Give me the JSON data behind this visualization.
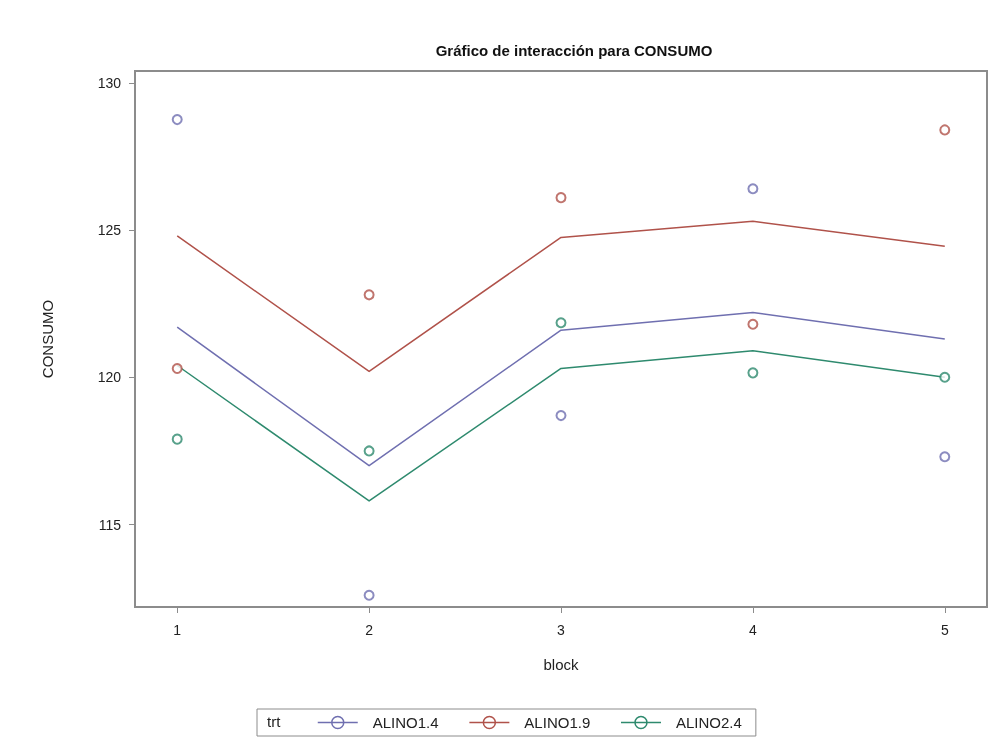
{
  "chart_data": {
    "type": "line",
    "title": "Gráfico de interacción para CONSUMO",
    "xlabel": "block",
    "ylabel": "CONSUMO",
    "legend_title": "trt",
    "x": [
      1,
      2,
      3,
      4,
      5
    ],
    "xlim": [
      0.78,
      5.22
    ],
    "xticks": [
      1,
      2,
      3,
      4,
      5
    ],
    "ylim": [
      112.2,
      130.4
    ],
    "yticks": [
      115,
      120,
      125,
      130
    ],
    "grid": false,
    "legend": "bottom",
    "series": [
      {
        "name": "ALINO1.4",
        "color": "#6f6fb0",
        "values": [
          121.7,
          117.0,
          121.6,
          122.2,
          121.3
        ]
      },
      {
        "name": "ALINO1.9",
        "color": "#b0524a",
        "values": [
          124.8,
          120.2,
          124.75,
          125.3,
          124.45
        ]
      },
      {
        "name": "ALINO2.4",
        "color": "#2e8a6e",
        "values": [
          120.4,
          115.8,
          120.3,
          120.9,
          120.0
        ]
      },
      {
        "type": "scatter",
        "marker": "circle",
        "color": "#6f6fb0",
        "values": [
          128.75,
          112.6,
          118.7,
          126.4,
          117.3
        ]
      },
      {
        "type": "scatter",
        "marker": "circle",
        "color": "#b0524a",
        "values": [
          120.3,
          122.8,
          126.1,
          121.8,
          128.4
        ]
      },
      {
        "type": "scatter",
        "marker": "circle",
        "color": "#2e8a6e",
        "values": [
          117.9,
          117.5,
          121.85,
          120.15,
          120.0
        ]
      }
    ]
  }
}
